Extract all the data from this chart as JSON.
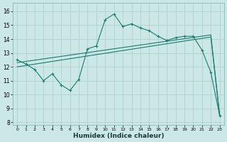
{
  "xlabel": "Humidex (Indice chaleur)",
  "bg_color": "#cce8e6",
  "line_color": "#1a7a6e",
  "grid_color": "#aacfcc",
  "xlim": [
    -0.5,
    23.5
  ],
  "ylim": [
    7.8,
    16.6
  ],
  "xticks": [
    0,
    1,
    2,
    3,
    4,
    5,
    6,
    7,
    8,
    9,
    10,
    11,
    12,
    13,
    14,
    15,
    16,
    17,
    18,
    19,
    20,
    21,
    22,
    23
  ],
  "yticks": [
    8,
    9,
    10,
    11,
    12,
    13,
    14,
    15,
    16
  ],
  "line1_x": [
    0,
    1,
    2,
    3,
    4,
    5,
    6,
    7,
    8,
    9,
    10,
    11,
    12,
    13,
    14,
    15,
    16,
    17,
    18,
    19,
    20,
    21,
    22,
    23
  ],
  "line1_y": [
    12.5,
    12.2,
    11.8,
    11.0,
    11.5,
    10.7,
    10.3,
    11.1,
    13.3,
    13.5,
    15.4,
    15.8,
    14.9,
    15.1,
    14.8,
    14.6,
    14.2,
    13.9,
    14.1,
    14.2,
    14.2,
    13.2,
    11.6,
    8.5
  ],
  "line2_x": [
    0,
    22,
    23
  ],
  "line2_y": [
    12.0,
    14.15,
    8.5
  ],
  "line3_x": [
    0,
    22,
    23
  ],
  "line3_y": [
    12.3,
    14.3,
    8.5
  ]
}
